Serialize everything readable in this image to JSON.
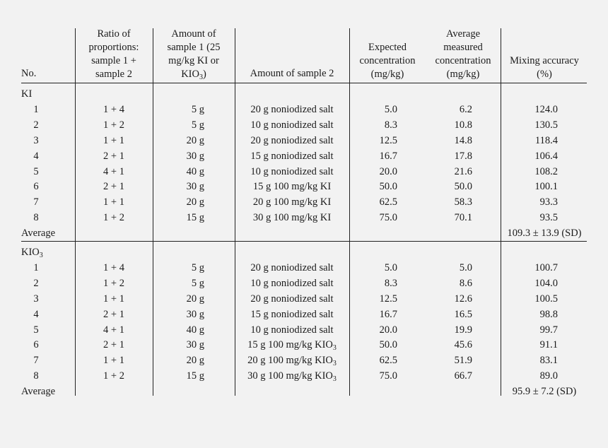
{
  "header": {
    "no": "No.",
    "ratio": [
      "Ratio of",
      "proportions:",
      "sample 1 +",
      "sample 2"
    ],
    "amount1": [
      "Amount of",
      "sample 1 (25",
      "mg/kg KI or",
      "KIO"
    ],
    "amount1_sub": "3",
    "amount1_tail": ")",
    "amount2": "Amount of sample 2",
    "expected": [
      "Expected",
      "concentration",
      "(mg/kg)"
    ],
    "measured": [
      "Average",
      "measured",
      "concentration",
      "(mg/kg)"
    ],
    "accuracy": [
      "Mixing accuracy",
      "(%)"
    ]
  },
  "sections": [
    {
      "label": "KI",
      "label_sub": "",
      "rows": [
        {
          "no": "1",
          "ratio": "1 + 4",
          "amount1": "5 g",
          "amount2": "20 g noniodized salt",
          "amount2_sub": "",
          "expected": "5.0",
          "measured": "6.2",
          "accuracy": "124.0"
        },
        {
          "no": "2",
          "ratio": "1 + 2",
          "amount1": "5 g",
          "amount2": "10 g noniodized salt",
          "amount2_sub": "",
          "expected": "8.3",
          "measured": "10.8",
          "accuracy": "130.5"
        },
        {
          "no": "3",
          "ratio": "1 + 1",
          "amount1": "20 g",
          "amount2": "20 g noniodized salt",
          "amount2_sub": "",
          "expected": "12.5",
          "measured": "14.8",
          "accuracy": "118.4"
        },
        {
          "no": "4",
          "ratio": "2 + 1",
          "amount1": "30 g",
          "amount2": "15 g noniodized salt",
          "amount2_sub": "",
          "expected": "16.7",
          "measured": "17.8",
          "accuracy": "106.4"
        },
        {
          "no": "5",
          "ratio": "4 + 1",
          "amount1": "40 g",
          "amount2": "10 g noniodized salt",
          "amount2_sub": "",
          "expected": "20.0",
          "measured": "21.6",
          "accuracy": "108.2"
        },
        {
          "no": "6",
          "ratio": "2 + 1",
          "amount1": "30 g",
          "amount2": "15 g 100 mg/kg KI",
          "amount2_sub": "",
          "expected": "50.0",
          "measured": "50.0",
          "accuracy": "100.1"
        },
        {
          "no": "7",
          "ratio": "1 + 1",
          "amount1": "20 g",
          "amount2": "20 g 100 mg/kg KI",
          "amount2_sub": "",
          "expected": "62.5",
          "measured": "58.3",
          "accuracy": "93.3"
        },
        {
          "no": "8",
          "ratio": "1 + 2",
          "amount1": "15 g",
          "amount2": "30 g 100 mg/kg KI",
          "amount2_sub": "",
          "expected": "75.0",
          "measured": "70.1",
          "accuracy": "93.5"
        }
      ],
      "average_label": "Average",
      "average_value": "109.3 ± 13.9 (SD)"
    },
    {
      "label": "KIO",
      "label_sub": "3",
      "rows": [
        {
          "no": "1",
          "ratio": "1 + 4",
          "amount1": "5 g",
          "amount2": "20 g noniodized salt",
          "amount2_sub": "",
          "expected": "5.0",
          "measured": "5.0",
          "accuracy": "100.7"
        },
        {
          "no": "2",
          "ratio": "1 + 2",
          "amount1": "5 g",
          "amount2": "10 g noniodized salt",
          "amount2_sub": "",
          "expected": "8.3",
          "measured": "8.6",
          "accuracy": "104.0"
        },
        {
          "no": "3",
          "ratio": "1 + 1",
          "amount1": "20 g",
          "amount2": "20 g noniodized salt",
          "amount2_sub": "",
          "expected": "12.5",
          "measured": "12.6",
          "accuracy": "100.5"
        },
        {
          "no": "4",
          "ratio": "2 + 1",
          "amount1": "30 g",
          "amount2": "15 g noniodized salt",
          "amount2_sub": "",
          "expected": "16.7",
          "measured": "16.5",
          "accuracy": "98.8"
        },
        {
          "no": "5",
          "ratio": "4 + 1",
          "amount1": "40 g",
          "amount2": "10 g noniodized salt",
          "amount2_sub": "",
          "expected": "20.0",
          "measured": "19.9",
          "accuracy": "99.7"
        },
        {
          "no": "6",
          "ratio": "2 + 1",
          "amount1": "30 g",
          "amount2": "15 g 100 mg/kg KIO",
          "amount2_sub": "3",
          "expected": "50.0",
          "measured": "45.6",
          "accuracy": "91.1"
        },
        {
          "no": "7",
          "ratio": "1 + 1",
          "amount1": "20 g",
          "amount2": "20 g 100 mg/kg KIO",
          "amount2_sub": "3",
          "expected": "62.5",
          "measured": "51.9",
          "accuracy": "83.1"
        },
        {
          "no": "8",
          "ratio": "1 + 2",
          "amount1": "15 g",
          "amount2": "30 g 100 mg/kg KIO",
          "amount2_sub": "3",
          "expected": "75.0",
          "measured": "66.7",
          "accuracy": "89.0"
        }
      ],
      "average_label": "Average",
      "average_value": "95.9 ± 7.2 (SD)"
    }
  ]
}
